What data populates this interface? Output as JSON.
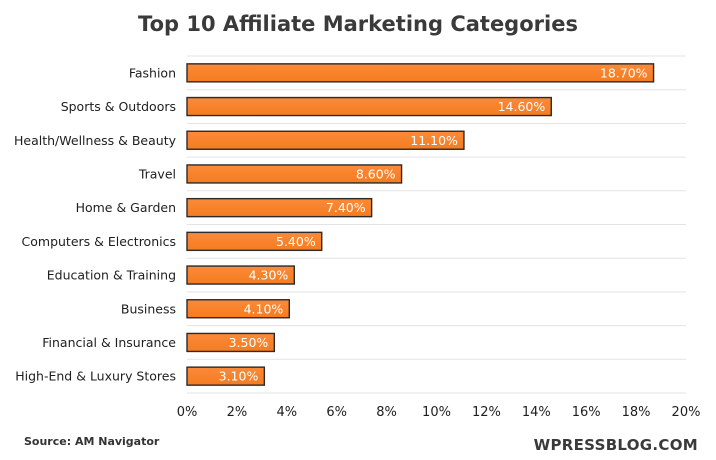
{
  "chart_data": {
    "type": "bar",
    "orientation": "horizontal",
    "title": "Top 10 Affiliate Marketing Categories",
    "categories": [
      "Fashion",
      "Sports & Outdoors",
      "Health/Wellness & Beauty",
      "Travel",
      "Home & Garden",
      "Computers & Electronics",
      "Education & Training",
      "Business",
      "Financial & Insurance",
      "High-End & Luxury Stores"
    ],
    "values": [
      18.7,
      14.6,
      11.1,
      8.6,
      7.4,
      5.4,
      4.3,
      4.1,
      3.5,
      3.1
    ],
    "value_labels": [
      "18.70%",
      "14.60%",
      "11.10%",
      "8.60%",
      "7.40%",
      "5.40%",
      "4.30%",
      "4.10%",
      "3.50%",
      "3.10%"
    ],
    "x_ticks": [
      0,
      2,
      4,
      6,
      8,
      10,
      12,
      14,
      16,
      18,
      20
    ],
    "x_tick_labels": [
      "0%",
      "2%",
      "4%",
      "6%",
      "8%",
      "10%",
      "12%",
      "14%",
      "16%",
      "18%",
      "20%"
    ],
    "xlim": [
      0,
      20
    ],
    "xlabel": "",
    "ylabel": "",
    "grid": "horizontal",
    "legend": "none",
    "bar_color": "#f57c1f",
    "bar_gradient_top": "#fb8a3a",
    "bar_border_color": "#2b2b2b",
    "label_color": "#ffffff"
  },
  "footer": {
    "source": "Source: AM Navigator",
    "brand": "WPRESSBLOG.COM"
  }
}
